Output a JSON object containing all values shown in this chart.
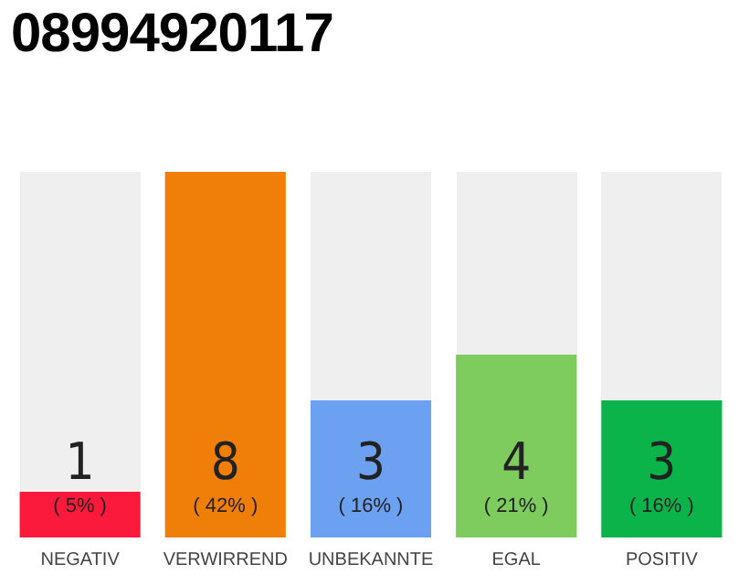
{
  "chart_data": {
    "type": "bar",
    "title": "08994920117",
    "categories": [
      "NEGATIV",
      "VERWIRREND",
      "UNBEKANNTE",
      "EGAL",
      "POSITIV"
    ],
    "values": [
      1,
      8,
      3,
      4,
      3
    ],
    "colors": [
      "#fb1a3b",
      "#f07f0a",
      "#6ca0f0",
      "#7ecb5e",
      "#0ab44a"
    ],
    "data_labels": true,
    "annotations": [
      "( 5% )",
      "( 42% )",
      "( 16% )",
      "( 21% )",
      "( 16% )"
    ],
    "tick_labels": "x",
    "grid": false,
    "legend": false
  }
}
